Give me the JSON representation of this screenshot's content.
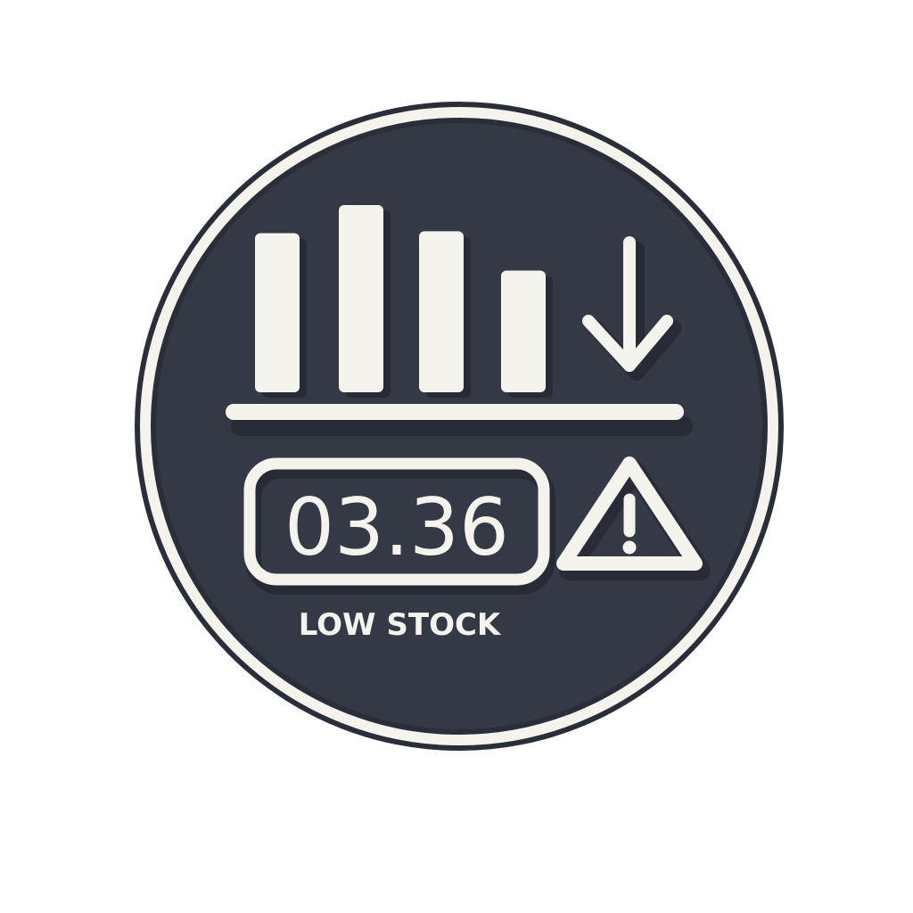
{
  "badge": {
    "value": "03.36",
    "caption": "LOW STOCK",
    "bar_levels": [
      0.85,
      1.0,
      0.86,
      0.65
    ],
    "icons": [
      "bar-chart-icon",
      "down-arrow-icon",
      "warning-icon"
    ]
  },
  "colors": {
    "badge_fill": "#353945",
    "ring": "#1f222b",
    "line": "#f4f3ec",
    "shadow": "#1d2029"
  }
}
